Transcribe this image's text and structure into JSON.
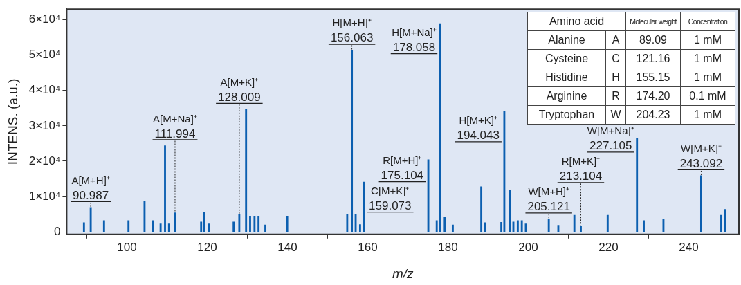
{
  "chart_data": [
    {
      "type": "bar",
      "xlabel": "m/z",
      "ylabel": "INTENS. (a.u.)",
      "color": "#0b5fb0",
      "x": [
        89.3,
        90.987,
        94.3,
        100.4,
        104.4,
        106.5,
        108.4,
        109.5,
        110.5,
        111.994,
        118.5,
        119.2,
        120.5,
        126.6,
        128.009,
        129.7,
        130.7,
        131.8,
        132.8,
        134.5,
        139.95,
        154.9,
        156.063,
        157.0,
        158.1,
        159.073,
        175.104,
        177.2,
        178.058,
        179.2,
        181.2,
        188.3,
        189.2,
        193.3,
        194.043,
        195.4,
        196.3,
        197.4,
        198.4,
        199.4,
        205.121,
        207.5,
        211.5,
        213.104,
        219.8,
        227.105,
        228.8,
        233.7,
        243.092,
        248.1,
        249.0
      ],
      "values": [
        2600,
        6900,
        3200,
        3200,
        8600,
        3200,
        2300,
        24400,
        2300,
        5400,
        2800,
        5600,
        2300,
        2800,
        4900,
        34700,
        4500,
        4500,
        4500,
        2000,
        4500,
        5000,
        51400,
        5000,
        2100,
        14100,
        20400,
        3200,
        58900,
        4100,
        2000,
        12800,
        2600,
        2700,
        34000,
        11800,
        2800,
        3200,
        3200,
        2300,
        3700,
        1900,
        4700,
        1700,
        4700,
        26500,
        3200,
        3600,
        15900,
        4700,
        6400
      ],
      "xlim": [
        85,
        252.5
      ],
      "xticks": [
        100,
        120,
        140,
        160,
        180,
        200,
        220,
        240
      ],
      "ylim": [
        -700,
        63000
      ],
      "yticks": [
        0,
        {
          "value": 10000,
          "label": "1×10⁴"
        },
        {
          "value": 20000,
          "label": "2×10⁴"
        },
        {
          "value": 30000,
          "label": "3×10⁴"
        },
        {
          "value": 40000,
          "label": "4×10⁴"
        },
        {
          "value": 50000,
          "label": "5×10⁴"
        },
        {
          "value": 60000,
          "label": "6×10⁴"
        }
      ],
      "legend": false,
      "annotations": [
        {
          "text": "A[M+H]⁺\n90.987",
          "x": 90.987,
          "y": 6900
        },
        {
          "text": "A[M+Na]⁺\n111.994",
          "x": 111.994,
          "y": 5400
        },
        {
          "text": "A[M+K]⁺\n128.009",
          "x": 128.009,
          "y": 4900
        },
        {
          "text": "H[M+H]⁺\n156.063",
          "x": 156.063,
          "y": 51400
        },
        {
          "text": "C[M+K]⁺\n159.073",
          "x": 159.073,
          "y": 14100
        },
        {
          "text": "R[M+H]⁺\n175.104",
          "x": 175.104,
          "y": 20400
        },
        {
          "text": "H[M+Na]⁺\n178.058",
          "x": 178.058,
          "y": 58900
        },
        {
          "text": "H[M+K]⁺\n194.043",
          "x": 194.043,
          "y": 34000
        },
        {
          "text": "W[M+H]⁺\n205.121",
          "x": 205.121,
          "y": 3700
        },
        {
          "text": "R[M+K]⁺\n213.104",
          "x": 213.104,
          "y": 1700
        },
        {
          "text": "W[M+Na]⁺\n227.105",
          "x": 227.105,
          "y": 26500
        },
        {
          "text": "W[M+K]⁺\n243.092",
          "x": 243.092,
          "y": 15900
        }
      ]
    },
    {
      "type": "other",
      "annotations": [
        "Amino acid",
        "Molecular weight",
        "Concentration",
        "Alanine",
        "A",
        "89.09",
        "1 mM",
        "Cysteine",
        "C",
        "121.16",
        "1 mM",
        "Histidine",
        "H",
        "155.15",
        "1 mM",
        "Arginine",
        "R",
        "174.20",
        "0.1 mM",
        "Tryptophan",
        "W",
        "204.23",
        "1 mM"
      ]
    }
  ]
}
